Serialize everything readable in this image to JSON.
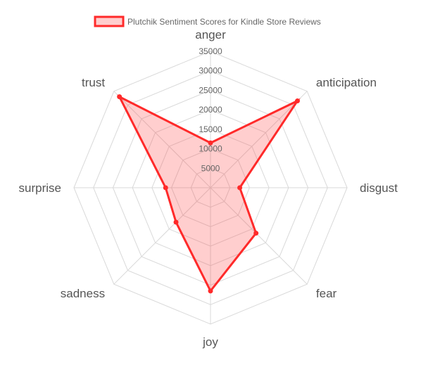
{
  "chart_data": {
    "type": "radar",
    "legend": {
      "label": "Plutchik Sentiment Scores for Kindle Store Reviews",
      "placement": "top-center"
    },
    "categories": [
      "anger",
      "anticipation",
      "disgust",
      "fear",
      "joy",
      "sadness",
      "surprise",
      "trust"
    ],
    "series": [
      {
        "name": "Plutchik Sentiment Scores for Kindle Store Reviews",
        "values": [
          11500,
          31500,
          7500,
          16500,
          26500,
          12500,
          11500,
          33000
        ]
      }
    ],
    "r_ticks": [
      "5000",
      "10000",
      "15000",
      "20000",
      "25000",
      "30000",
      "35000"
    ],
    "r_range": [
      0,
      35000
    ],
    "grid": true
  },
  "colors": {
    "line": "#ff2a2a",
    "fill": "rgba(255, 60, 60, 0.25)",
    "grid": "#d9d9d9",
    "text": "#666666"
  }
}
